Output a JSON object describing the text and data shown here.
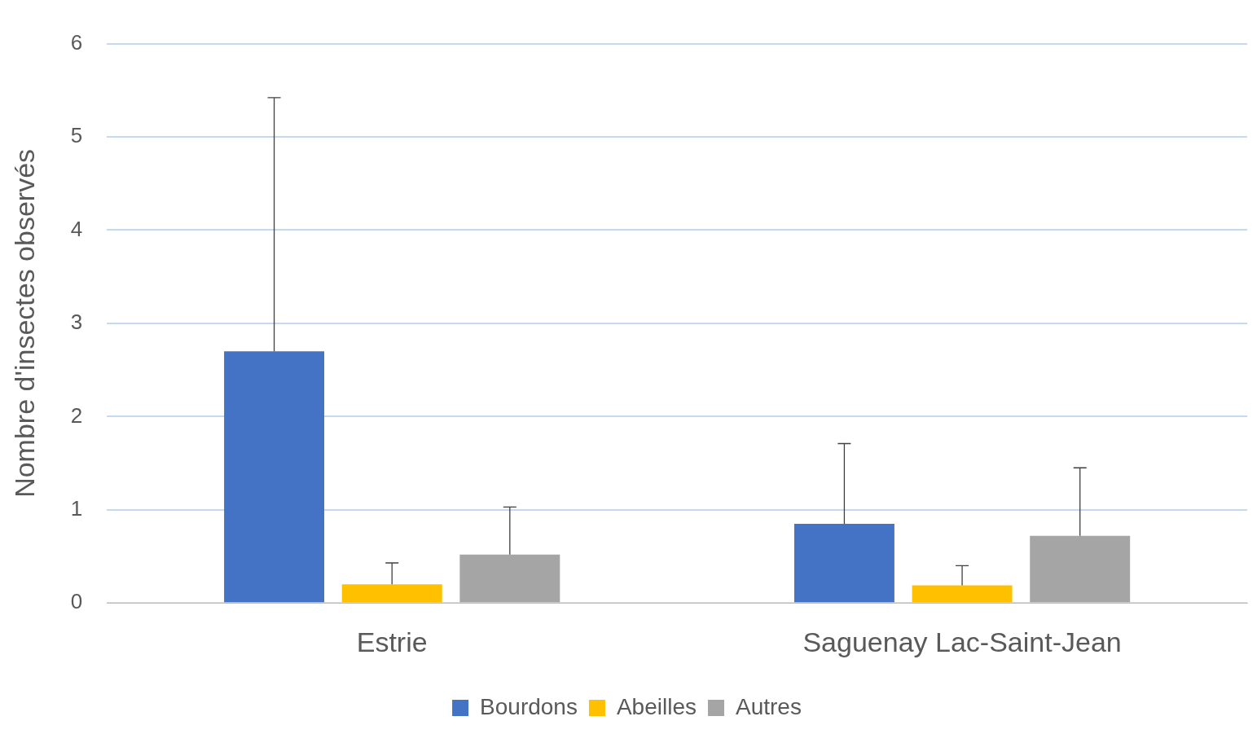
{
  "chart_data": {
    "type": "bar",
    "ylabel": "Nombre d'insectes observés",
    "categories": [
      "Estrie",
      "Saguenay Lac-Saint-Jean"
    ],
    "series": [
      {
        "name": "Bourdons",
        "color": "#4472c4",
        "values": [
          2.7,
          0.85
        ],
        "errors": [
          [
            2.7,
            5.42
          ],
          [
            0.85,
            1.71
          ]
        ]
      },
      {
        "name": "Abeilles",
        "color": "#ffc000",
        "values": [
          0.2,
          0.19
        ],
        "errors": [
          [
            0.2,
            0.43
          ],
          [
            0.19,
            0.4
          ]
        ]
      },
      {
        "name": "Autres",
        "color": "#a5a5a5",
        "values": [
          0.52,
          0.72
        ],
        "errors": [
          [
            0.52,
            1.03
          ],
          [
            0.72,
            1.45
          ]
        ]
      }
    ],
    "ylim": [
      0,
      6
    ],
    "yticks": [
      0,
      1,
      2,
      3,
      4,
      5,
      6
    ],
    "grid": "y",
    "legend": "bottom"
  }
}
